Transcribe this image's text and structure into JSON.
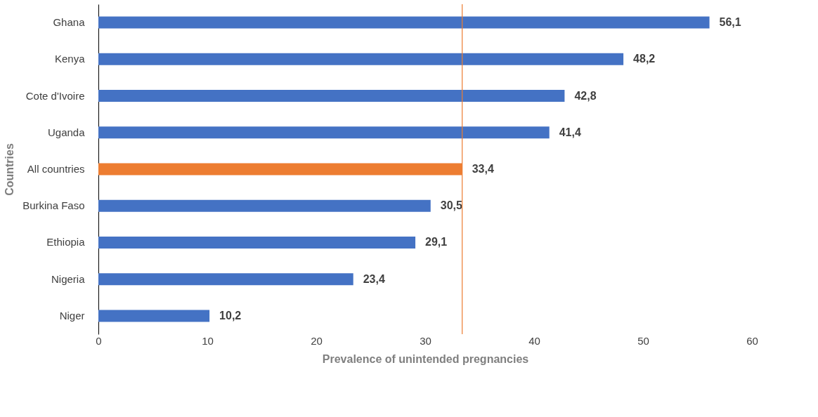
{
  "chart_data": {
    "type": "bar",
    "orientation": "horizontal",
    "xlabel": "Prevalence of unintended pregnancies",
    "ylabel": "Countries",
    "categories": [
      "Ghana",
      "Kenya",
      "Cote d'Ivoire",
      "Uganda",
      "All countries",
      "Burkina Faso",
      "Ethiopia",
      "Nigeria",
      "Niger"
    ],
    "values": [
      56.1,
      48.2,
      42.8,
      41.4,
      33.4,
      30.5,
      29.1,
      23.4,
      10.2
    ],
    "colors": [
      "#4472c4",
      "#4472c4",
      "#4472c4",
      "#4472c4",
      "#ed7d31",
      "#4472c4",
      "#4472c4",
      "#4472c4",
      "#4472c4"
    ],
    "value_labels": [
      "56,1",
      "48,2",
      "42,8",
      "41,4",
      "33,4",
      "30,5",
      "29,1",
      "23,4",
      "10,2"
    ],
    "xlim": [
      0,
      60
    ],
    "xticks": [
      0,
      10,
      20,
      30,
      40,
      50,
      60
    ],
    "ref_lines": [
      {
        "axis": "x",
        "value": 33.4,
        "color": "#ed7d31"
      }
    ],
    "grid": false,
    "legend": false
  }
}
